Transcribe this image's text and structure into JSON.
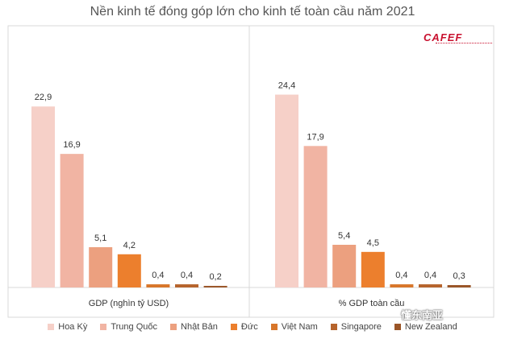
{
  "title": "Nền kinh tế đóng góp lớn cho kinh tế toàn cầu năm 2021",
  "logo_text": "CAFEF",
  "watermark_text": "懂东南亚",
  "legend": [
    {
      "name": "Hoa Kỳ",
      "color": "#f6d0c8"
    },
    {
      "name": "Trung Quốc",
      "color": "#f1b4a3"
    },
    {
      "name": "Nhật Bản",
      "color": "#eca07f"
    },
    {
      "name": "Đức",
      "color": "#ec7f2d"
    },
    {
      "name": "Việt Nam",
      "color": "#d8762a"
    },
    {
      "name": "Singapore",
      "color": "#b6642c"
    },
    {
      "name": "New Zealand",
      "color": "#9a5527"
    }
  ],
  "chart_data": [
    {
      "type": "bar",
      "title": "",
      "xlabel": "GDP (nghìn tỷ USD)",
      "ylabel": "",
      "categories": [
        "Hoa Kỳ",
        "Trung Quốc",
        "Nhật Bản",
        "Đức",
        "Việt Nam",
        "Singapore",
        "New Zealand"
      ],
      "values": [
        22.9,
        16.9,
        5.1,
        4.2,
        0.4,
        0.4,
        0.2
      ],
      "data_labels": [
        "22,9",
        "16,9",
        "5,1",
        "4,2",
        "0,4",
        "0,4",
        "0,2"
      ],
      "ylim": [
        0,
        27
      ],
      "grid": false
    },
    {
      "type": "bar",
      "title": "",
      "xlabel": "% GDP toàn cầu",
      "ylabel": "",
      "categories": [
        "Hoa Kỳ",
        "Trung Quốc",
        "Nhật Bản",
        "Đức",
        "Việt Nam",
        "Singapore",
        "New Zealand"
      ],
      "values": [
        24.4,
        17.9,
        5.4,
        4.5,
        0.4,
        0.4,
        0.3
      ],
      "data_labels": [
        "24,4",
        "17,9",
        "5,4",
        "4,5",
        "0,4",
        "0,4",
        "0,3"
      ],
      "ylim": [
        0,
        27
      ],
      "grid": false
    }
  ]
}
